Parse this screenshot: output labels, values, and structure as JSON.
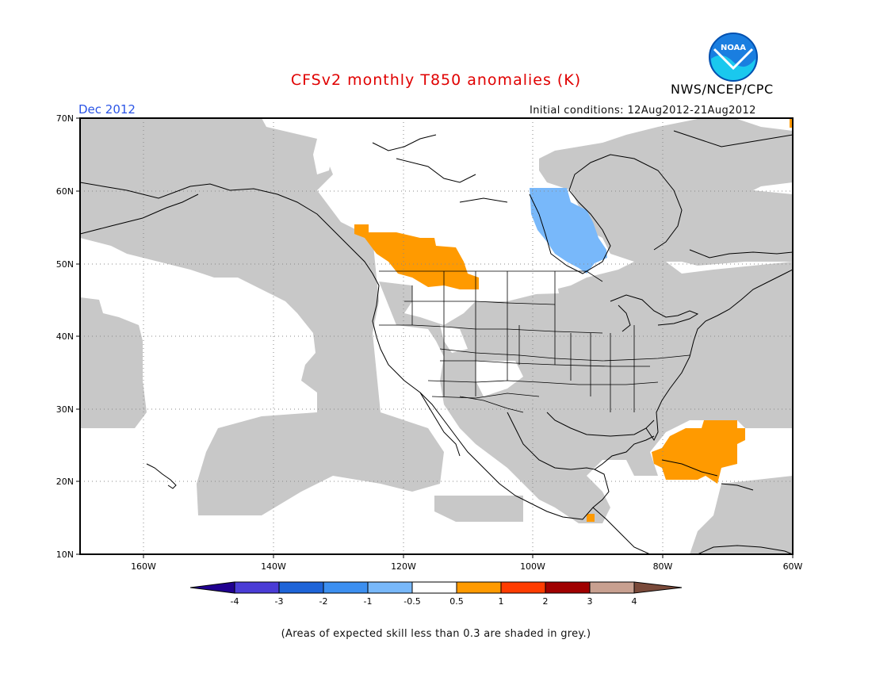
{
  "title": "CFSv2 monthly T850 anomalies (K)",
  "agency": "NWS/NCEP/CPC",
  "logo_text": "NOAA",
  "month": "Dec 2012",
  "initial_conditions": "Initial conditions: 12Aug2012-21Aug2012",
  "footnote": "(Areas of expected skill less than 0.3 are shaded in grey.)",
  "map": {
    "lat_labels": [
      "70N",
      "60N",
      "50N",
      "40N",
      "30N",
      "20N",
      "10N"
    ],
    "lon_labels": [
      "160W",
      "140W",
      "120W",
      "100W",
      "80W",
      "60W"
    ]
  },
  "colorbar": {
    "labels": [
      "-4",
      "-3",
      "-2",
      "-1",
      "-0.5",
      "0.5",
      "1",
      "2",
      "3",
      "4"
    ],
    "colors": [
      "#200090",
      "#4a3cd6",
      "#1e64d8",
      "#3c8ff0",
      "#78b8fa",
      "#ffffff",
      "#ff9a00",
      "#ff3c00",
      "#a00000",
      "#c8a090",
      "#7a4a3a"
    ]
  },
  "colors": {
    "grey_low_skill": "#c8c8c8",
    "warm_anomaly": "#ff9a00",
    "cool_anomaly": "#78b8fa"
  }
}
